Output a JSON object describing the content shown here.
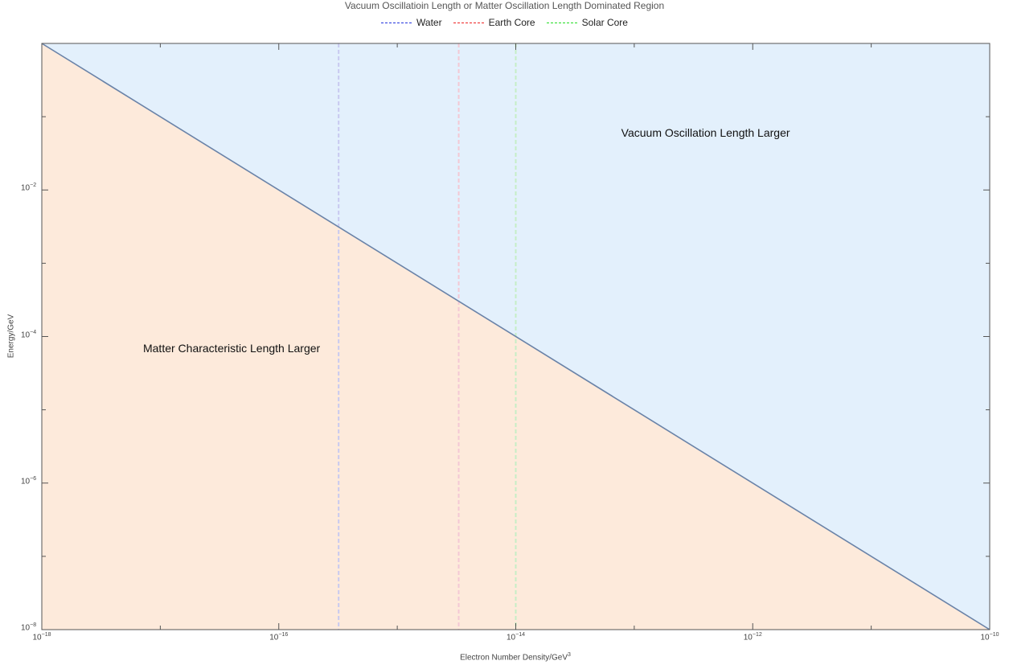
{
  "chart_data": {
    "type": "area",
    "title": "Vacuum Oscillatioin Length or Matter Oscillation Length Dominated Region",
    "xlabel": "Electron Number Density/GeV",
    "xlabel_superscript": "3",
    "ylabel": "Energy/GeV",
    "x_scale": "log",
    "y_scale": "log",
    "xlim": [
      1e-18,
      1e-10
    ],
    "ylim": [
      1e-08,
      1
    ],
    "x_ticks": [
      {
        "base": "10",
        "exp": "−18"
      },
      {
        "base": "10",
        "exp": "−16"
      },
      {
        "base": "10",
        "exp": "−14"
      },
      {
        "base": "10",
        "exp": "−12"
      },
      {
        "base": "10",
        "exp": "−10"
      }
    ],
    "y_ticks": [
      {
        "base": "10",
        "exp": "−2"
      },
      {
        "base": "10",
        "exp": "−4"
      },
      {
        "base": "10",
        "exp": "−6"
      },
      {
        "base": "10",
        "exp": "−8"
      }
    ],
    "boundary_line": {
      "x": [
        1e-18,
        1e-10
      ],
      "y": [
        1,
        1e-08
      ],
      "color": "#6a83a8"
    },
    "regions": [
      {
        "label": "Vacuum Oscillation Length Larger",
        "side": "above",
        "color": "#e3f0fc",
        "label_x": 4e-13,
        "label_y": 0.06
      },
      {
        "label": "Matter Characteristic Length Larger",
        "side": "below",
        "color": "#fdeadb",
        "label_x": 4e-17,
        "label_y": 7e-05
      }
    ],
    "series": [
      {
        "name": "Water",
        "x": 3.2e-16,
        "color": "#2233dd",
        "line_color": "#c8c9f0"
      },
      {
        "name": "Earth Core",
        "x": 3.3e-15,
        "color": "#ee2222",
        "line_color": "#f4c8d4"
      },
      {
        "name": "Solar Core",
        "x": 1e-14,
        "color": "#22dd22",
        "line_color": "#c6eec6"
      }
    ],
    "legend_position": "top-center",
    "grid": false
  }
}
